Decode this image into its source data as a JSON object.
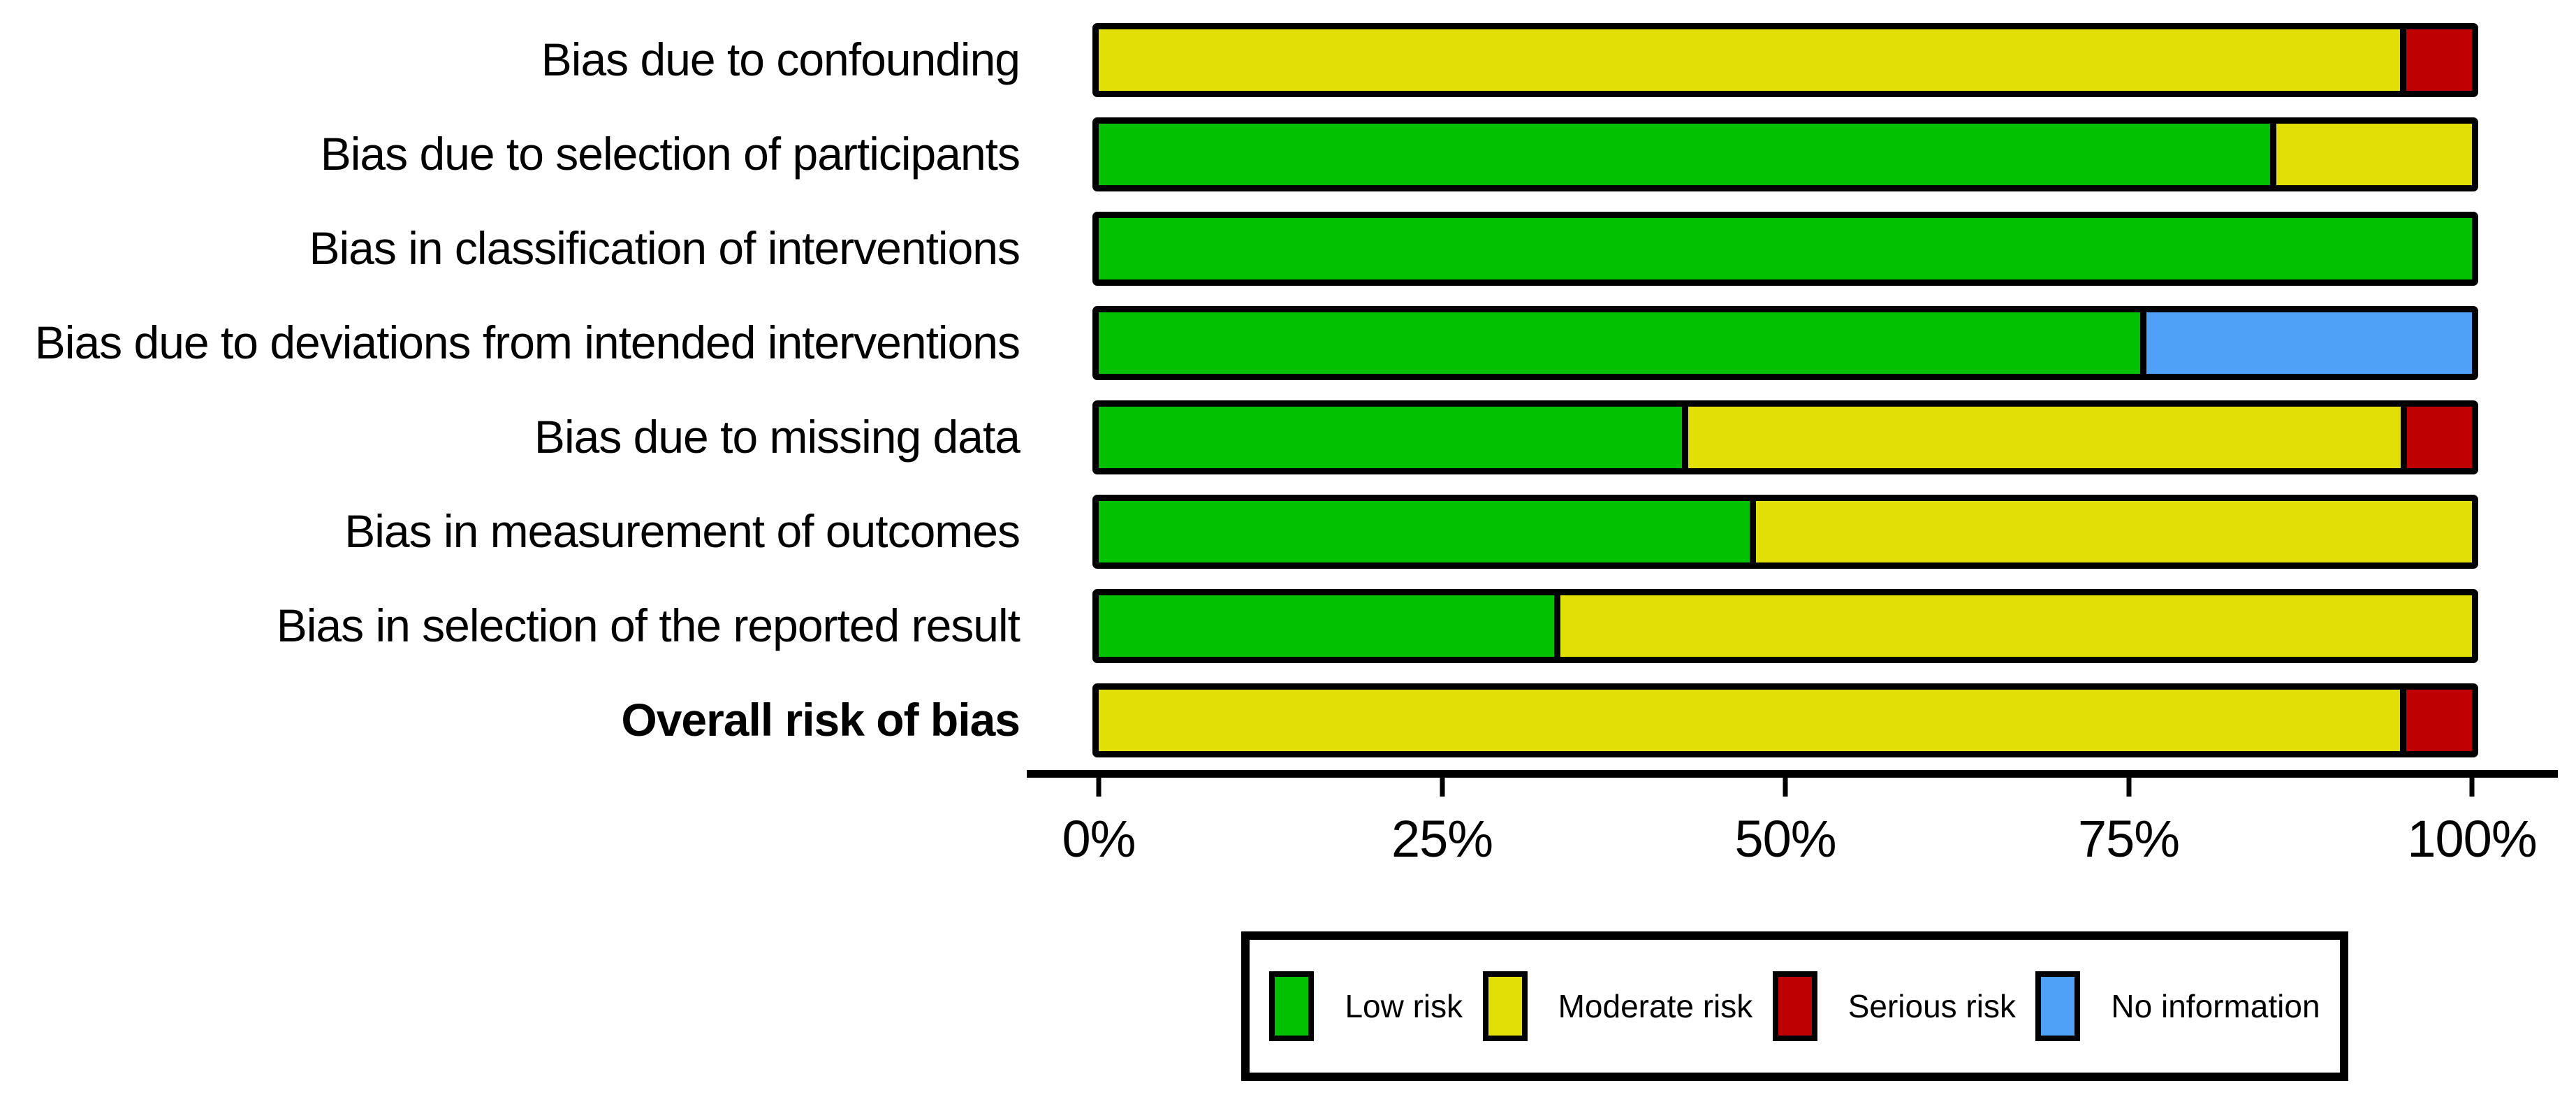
{
  "chart_data": {
    "type": "bar",
    "subtype": "stacked-horizontal-percentage",
    "title": "",
    "xlabel": "",
    "ylabel": "",
    "xlim": [
      0,
      100
    ],
    "grid": false,
    "legend_position": "bottom",
    "x_ticks": [
      {
        "value": 0,
        "label": "0%"
      },
      {
        "value": 25,
        "label": "25%"
      },
      {
        "value": 50,
        "label": "50%"
      },
      {
        "value": 75,
        "label": "75%"
      },
      {
        "value": 100,
        "label": "100%"
      }
    ],
    "categories": [
      "Bias due to confounding",
      "Bias due to selection of participants",
      "Bias in classification of interventions",
      "Bias due to deviations from intended interventions",
      "Bias due to missing data",
      "Bias in measurement of outcomes",
      "Bias in selection of the reported result",
      "Overall risk of bias"
    ],
    "bold_category": "Overall risk of bias",
    "series": [
      {
        "name": "Low risk",
        "key": "low-risk",
        "color": "#02C100",
        "values": [
          0,
          85.7,
          100,
          76.2,
          42.9,
          47.6,
          33.3,
          0
        ]
      },
      {
        "name": "Moderate risk",
        "key": "moderate-risk",
        "color": "#E2DF07",
        "values": [
          95.2,
          14.3,
          0,
          0,
          52.4,
          52.4,
          66.7,
          95.2
        ]
      },
      {
        "name": "Serious risk",
        "key": "serious-risk",
        "color": "#BF0000",
        "values": [
          4.8,
          0,
          0,
          0,
          4.8,
          0,
          0,
          4.8
        ]
      },
      {
        "name": "No information",
        "key": "no-information",
        "color": "#4EA1F7",
        "values": [
          0,
          0,
          0,
          23.8,
          0,
          0,
          0,
          0
        ]
      }
    ]
  },
  "legend": {
    "items": [
      {
        "label": "Low risk",
        "key": "low-risk",
        "color": "#02C100"
      },
      {
        "label": "Moderate risk",
        "key": "moderate-risk",
        "color": "#E2DF07"
      },
      {
        "label": "Serious risk",
        "key": "serious-risk",
        "color": "#BF0000"
      },
      {
        "label": "No information",
        "key": "no-information",
        "color": "#4EA1F7"
      }
    ]
  },
  "colors": {
    "background": "#FFFFFF",
    "text": "#000000",
    "bar_border": "#000000",
    "axis": "#000000"
  }
}
